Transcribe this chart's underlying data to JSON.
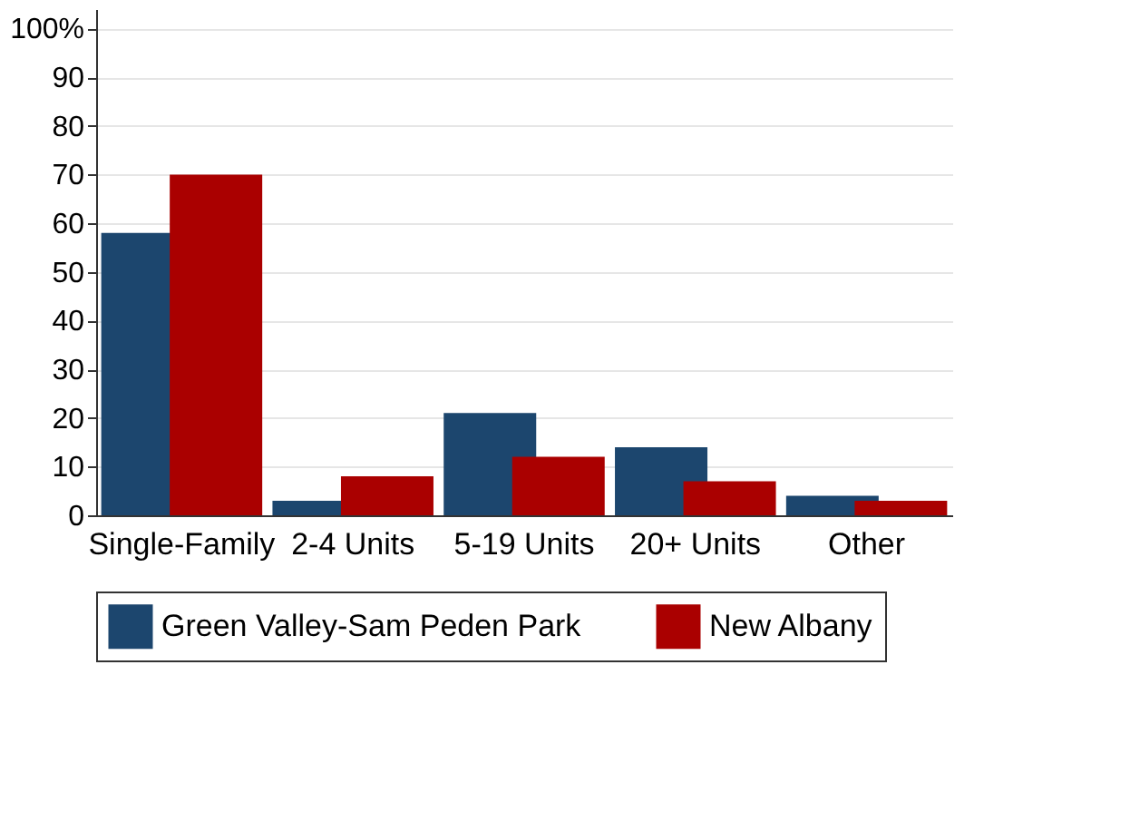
{
  "chart_data": {
    "type": "bar",
    "categories": [
      "Single-Family",
      "2-4 Units",
      "5-19 Units",
      "20+ Units",
      "Other"
    ],
    "series": [
      {
        "name": "Green Valley-Sam Peden Park",
        "color": "#1c466e",
        "values": [
          58,
          3,
          21,
          14,
          4
        ]
      },
      {
        "name": "New Albany",
        "color": "#aa0000",
        "values": [
          70,
          8,
          12,
          7,
          3
        ]
      }
    ],
    "ylim": [
      0,
      104
    ],
    "yticks": [
      0,
      10,
      20,
      30,
      40,
      50,
      60,
      70,
      80,
      90,
      {
        "value": 100,
        "label": "100%"
      }
    ],
    "grid": "y",
    "legend": "bottom"
  }
}
